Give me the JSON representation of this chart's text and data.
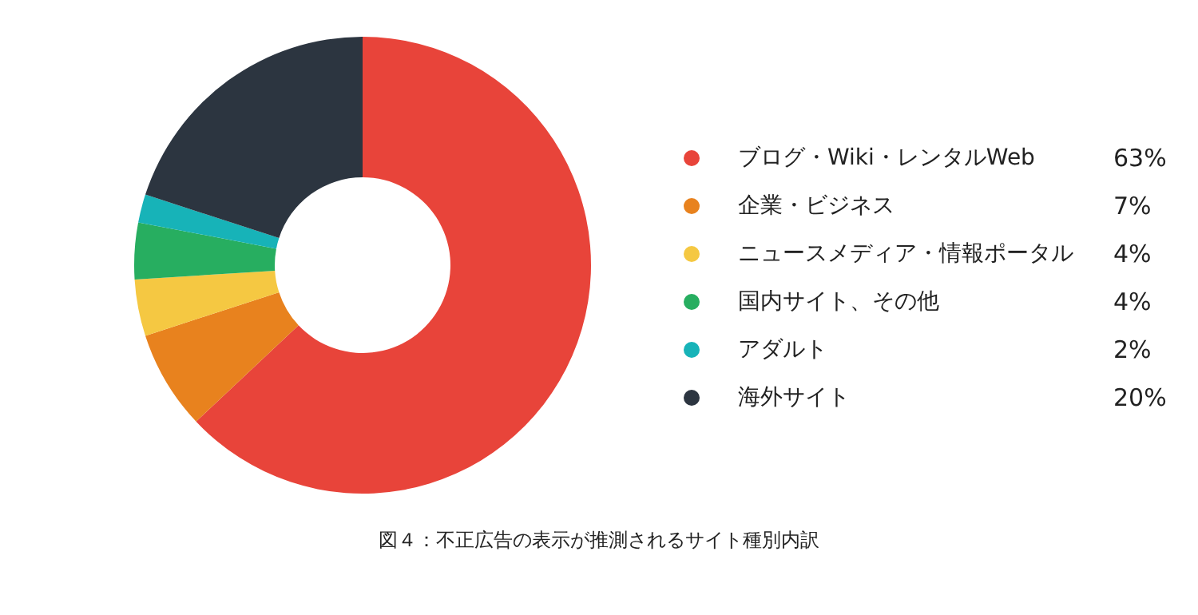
{
  "chart_data": {
    "type": "donut",
    "categories": [
      "ブログ・Wiki・レンタルWeb",
      "企業・ビジネス",
      "ニュースメディア・情報ポータル",
      "国内サイト、その他",
      "アダルト",
      "海外サイト"
    ],
    "values": [
      63,
      7,
      4,
      4,
      2,
      20
    ],
    "value_labels": [
      "63%",
      "7%",
      "4%",
      "4%",
      "2%",
      "20%"
    ],
    "colors": [
      "#e8443a",
      "#e8821e",
      "#f5c842",
      "#27ae60",
      "#17b3b8",
      "#2c3540"
    ],
    "legend": "right",
    "annotations": [
      "図４：不正広告の表示が推測されるサイト種別内訳"
    ]
  }
}
